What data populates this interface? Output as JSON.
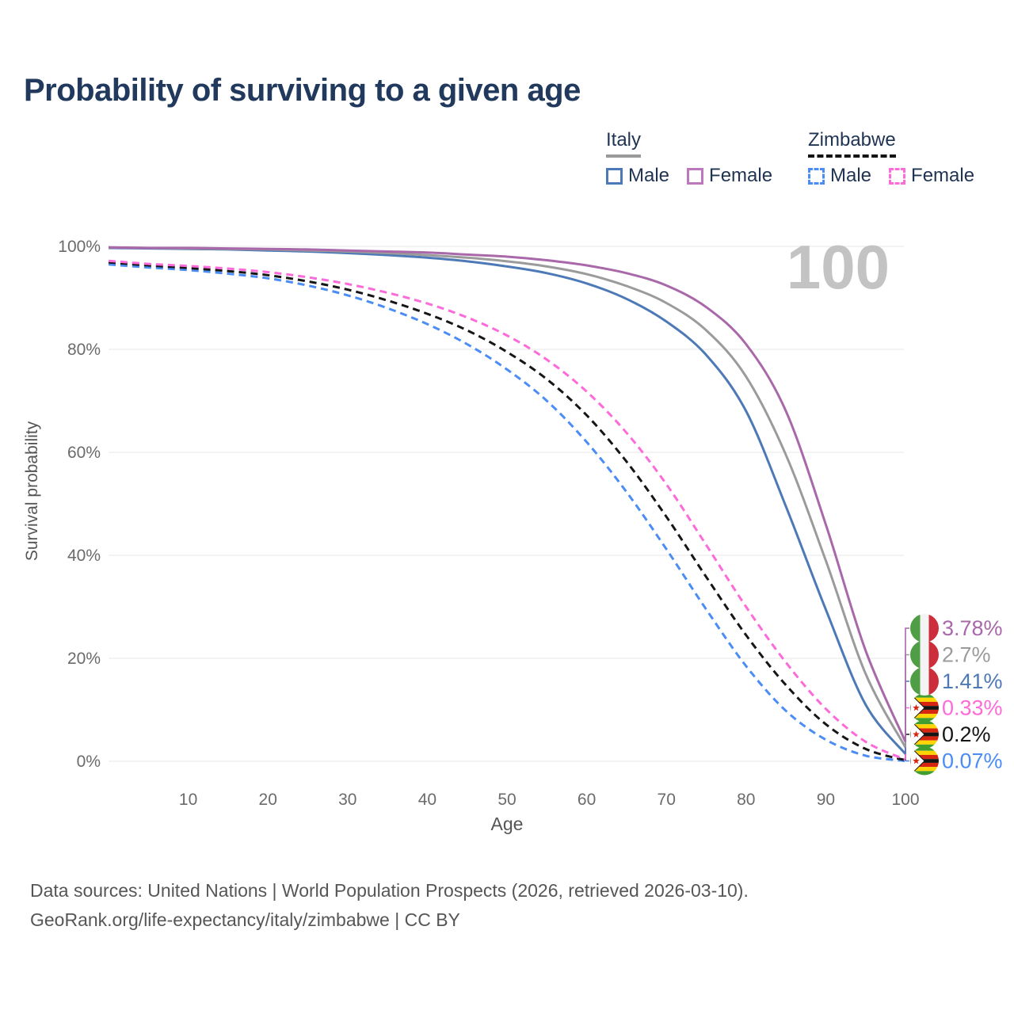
{
  "header": {
    "title": "Probability of surviving to a given age"
  },
  "legend": {
    "groups": [
      {
        "label": "Italy",
        "line_style": "solid",
        "underline_color": "#9a9a9a",
        "items": [
          {
            "label": "Male",
            "color": "#4d79b6"
          },
          {
            "label": "Female",
            "color": "#bd77bc"
          }
        ]
      },
      {
        "label": "Zimbabwe",
        "line_style": "dashed",
        "underline_color": "#141414",
        "items": [
          {
            "label": "Male",
            "color": "#4b8cf5"
          },
          {
            "label": "Female",
            "color": "#fc6bd9"
          }
        ]
      }
    ]
  },
  "footer": {
    "line1": "Data sources: United Nations | World Population Prospects (2026, retrieved 2026-03-10).",
    "line2": "GeoRank.org/life-expectancy/italy/zimbabwe | CC BY"
  },
  "chart_data": {
    "type": "line",
    "title": "Probability of surviving to a given age",
    "xlabel": "Age",
    "ylabel": "Survival probability",
    "xlim": [
      0,
      100
    ],
    "ylim": [
      0,
      100
    ],
    "x_ticks": [
      10,
      20,
      30,
      40,
      50,
      60,
      70,
      80,
      90,
      100
    ],
    "y_ticks": [
      0,
      20,
      40,
      60,
      80,
      100
    ],
    "y_tick_labels": [
      "0%",
      "20%",
      "40%",
      "60%",
      "80%",
      "100%"
    ],
    "grid": "horizontal",
    "legend_position": "top-right",
    "watermark": "100",
    "grid_color": "#e7e7e7",
    "tick_color": "#6b6b6b",
    "axis_title_color": "#555555",
    "watermark_color": "#c3c3c3",
    "series": [
      {
        "name": "Zimbabwe Male",
        "country": "zimbabwe",
        "sex": "male",
        "style": "dashed",
        "color": "#4b8cf5",
        "end_label": "0.07%",
        "end_value": 0.07,
        "points": [
          [
            0,
            96.5
          ],
          [
            5,
            95.9
          ],
          [
            10,
            95.4
          ],
          [
            15,
            94.7
          ],
          [
            20,
            93.8
          ],
          [
            25,
            92.4
          ],
          [
            30,
            90.5
          ],
          [
            35,
            88.0
          ],
          [
            40,
            84.9
          ],
          [
            45,
            81.0
          ],
          [
            50,
            76.1
          ],
          [
            55,
            70.0
          ],
          [
            60,
            62.0
          ],
          [
            65,
            52.3
          ],
          [
            70,
            41.2
          ],
          [
            75,
            29.5
          ],
          [
            80,
            18.5
          ],
          [
            85,
            9.8
          ],
          [
            90,
            4.2
          ],
          [
            95,
            1.1
          ],
          [
            100,
            0.07
          ]
        ]
      },
      {
        "name": "Zimbabwe",
        "country": "zimbabwe",
        "sex": "both",
        "style": "dashed",
        "color": "#161616",
        "end_label": "0.2%",
        "end_value": 0.2,
        "points": [
          [
            0,
            96.9
          ],
          [
            5,
            96.3
          ],
          [
            10,
            95.8
          ],
          [
            15,
            95.2
          ],
          [
            20,
            94.4
          ],
          [
            25,
            93.2
          ],
          [
            30,
            91.6
          ],
          [
            35,
            89.5
          ],
          [
            40,
            86.9
          ],
          [
            45,
            83.7
          ],
          [
            50,
            79.5
          ],
          [
            55,
            74.2
          ],
          [
            60,
            67.2
          ],
          [
            65,
            58.2
          ],
          [
            70,
            47.5
          ],
          [
            75,
            35.8
          ],
          [
            80,
            24.5
          ],
          [
            85,
            14.8
          ],
          [
            90,
            7.2
          ],
          [
            95,
            2.4
          ],
          [
            100,
            0.2
          ]
        ]
      },
      {
        "name": "Zimbabwe Female",
        "country": "zimbabwe",
        "sex": "female",
        "style": "dashed",
        "color": "#fc6bd9",
        "end_label": "0.33%",
        "end_value": 0.33,
        "points": [
          [
            0,
            97.2
          ],
          [
            5,
            96.6
          ],
          [
            10,
            96.2
          ],
          [
            15,
            95.7
          ],
          [
            20,
            95.0
          ],
          [
            25,
            94.0
          ],
          [
            30,
            92.7
          ],
          [
            35,
            91.0
          ],
          [
            40,
            88.9
          ],
          [
            45,
            86.2
          ],
          [
            50,
            82.7
          ],
          [
            55,
            78.0
          ],
          [
            60,
            71.8
          ],
          [
            65,
            63.8
          ],
          [
            70,
            53.8
          ],
          [
            75,
            42.0
          ],
          [
            80,
            30.0
          ],
          [
            85,
            19.2
          ],
          [
            90,
            10.2
          ],
          [
            95,
            3.8
          ],
          [
            100,
            0.33
          ]
        ]
      },
      {
        "name": "Italy Male",
        "country": "italy",
        "sex": "male",
        "style": "solid",
        "color": "#4d79b6",
        "end_label": "1.41%",
        "end_value": 1.41,
        "points": [
          [
            0,
            99.7
          ],
          [
            5,
            99.6
          ],
          [
            10,
            99.5
          ],
          [
            15,
            99.4
          ],
          [
            20,
            99.2
          ],
          [
            25,
            99.0
          ],
          [
            30,
            98.7
          ],
          [
            35,
            98.3
          ],
          [
            40,
            97.8
          ],
          [
            45,
            97.1
          ],
          [
            50,
            96.1
          ],
          [
            55,
            94.8
          ],
          [
            60,
            92.8
          ],
          [
            65,
            89.8
          ],
          [
            70,
            85.4
          ],
          [
            75,
            78.9
          ],
          [
            80,
            68.0
          ],
          [
            85,
            49.5
          ],
          [
            90,
            29.5
          ],
          [
            95,
            11.0
          ],
          [
            100,
            1.41
          ]
        ]
      },
      {
        "name": "Italy",
        "country": "italy",
        "sex": "both",
        "style": "solid",
        "color": "#9b9b9b",
        "end_label": "2.7%",
        "end_value": 2.7,
        "points": [
          [
            0,
            99.8
          ],
          [
            5,
            99.7
          ],
          [
            10,
            99.6
          ],
          [
            15,
            99.5
          ],
          [
            20,
            99.4
          ],
          [
            25,
            99.2
          ],
          [
            30,
            99.0
          ],
          [
            35,
            98.7
          ],
          [
            40,
            98.3
          ],
          [
            45,
            97.8
          ],
          [
            50,
            97.1
          ],
          [
            55,
            96.1
          ],
          [
            60,
            94.6
          ],
          [
            65,
            92.3
          ],
          [
            70,
            89.0
          ],
          [
            75,
            83.7
          ],
          [
            80,
            74.7
          ],
          [
            85,
            59.5
          ],
          [
            90,
            39.0
          ],
          [
            95,
            17.0
          ],
          [
            100,
            2.7
          ]
        ]
      },
      {
        "name": "Italy Female",
        "country": "italy",
        "sex": "female",
        "style": "solid",
        "color": "#a968aa",
        "end_label": "3.78%",
        "end_value": 3.78,
        "points": [
          [
            0,
            99.8
          ],
          [
            5,
            99.7
          ],
          [
            10,
            99.7
          ],
          [
            15,
            99.6
          ],
          [
            20,
            99.5
          ],
          [
            25,
            99.4
          ],
          [
            30,
            99.2
          ],
          [
            35,
            99.0
          ],
          [
            40,
            98.8
          ],
          [
            45,
            98.4
          ],
          [
            50,
            98.0
          ],
          [
            55,
            97.3
          ],
          [
            60,
            96.3
          ],
          [
            65,
            94.8
          ],
          [
            70,
            92.4
          ],
          [
            75,
            88.2
          ],
          [
            80,
            81.0
          ],
          [
            85,
            68.0
          ],
          [
            90,
            46.0
          ],
          [
            95,
            21.5
          ],
          [
            100,
            3.78
          ]
        ]
      }
    ]
  }
}
